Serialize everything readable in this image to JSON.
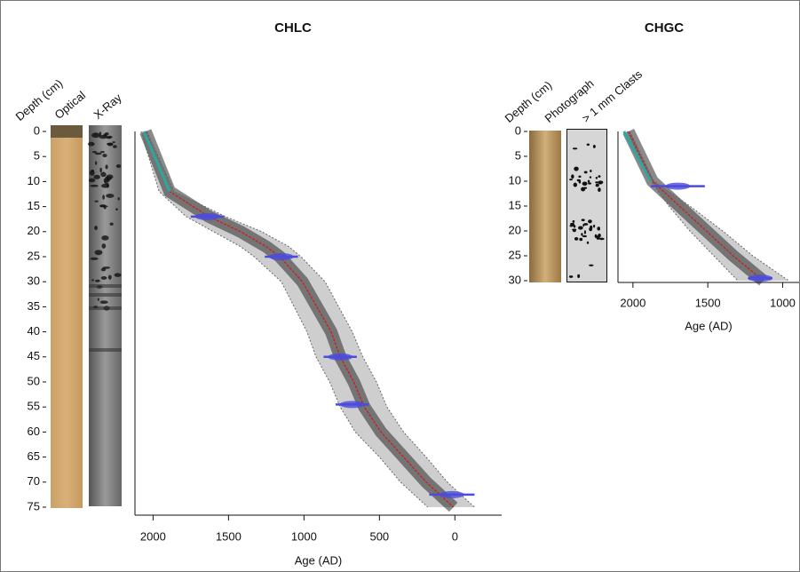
{
  "chart_data": [
    {
      "type": "line",
      "title": "CHLC",
      "depth_label": "Depth (cm)",
      "core_labels": [
        "Optical",
        "X-Ray"
      ],
      "x_label": "Age (AD)",
      "xlim": [
        2120,
        -310
      ],
      "xticks": [
        2000,
        1500,
        1000,
        500,
        0
      ],
      "ylim": [
        0,
        76.5
      ],
      "yticks": [
        0,
        5,
        10,
        15,
        20,
        25,
        30,
        35,
        40,
        45,
        50,
        55,
        60,
        65,
        70,
        75
      ],
      "median": {
        "color": "#cc1f1f",
        "age": [
          2050,
          1890,
          1630,
          1420,
          1250,
          1160,
          1010,
          820,
          760,
          670,
          600,
          490,
          340,
          190,
          10
        ],
        "depth": [
          0,
          12,
          17,
          20,
          23,
          25,
          30,
          40,
          45,
          50,
          55,
          60,
          65,
          70,
          75
        ]
      },
      "upper": {
        "color": "#666666",
        "age": [
          2080,
          1960,
          1780,
          1600,
          1420,
          1330,
          1150,
          980,
          920,
          830,
          760,
          660,
          500,
          360,
          180
        ],
        "depth": [
          0,
          12,
          17,
          20,
          23,
          25,
          30,
          40,
          45,
          50,
          55,
          60,
          65,
          70,
          75
        ]
      },
      "lower": {
        "color": "#666666",
        "age": [
          2040,
          1860,
          1520,
          1280,
          1100,
          1020,
          860,
          680,
          610,
          520,
          450,
          340,
          190,
          50,
          -130
        ],
        "depth": [
          0,
          12,
          17,
          20,
          23,
          25,
          30,
          40,
          45,
          50,
          55,
          60,
          65,
          70,
          75
        ]
      },
      "surface": {
        "color": "#2aa8a0",
        "age": [
          2060,
          1890
        ],
        "depth": [
          0,
          12
        ]
      },
      "dates": {
        "color": "#4b4bdc",
        "age": [
          1640,
          1150,
          760,
          680,
          20
        ],
        "depth": [
          17,
          25,
          45,
          54.5,
          72.5
        ],
        "error": [
          110,
          110,
          110,
          110,
          150
        ]
      }
    },
    {
      "type": "line",
      "title": "CHGC",
      "depth_label": "Depth (cm)",
      "core_labels": [
        "Photograph",
        "> 1 mm Clasts"
      ],
      "x_label": "Age (AD)",
      "xlim": [
        2100,
        890
      ],
      "xticks": [
        2000,
        1500,
        1000
      ],
      "ylim": [
        0,
        30.3
      ],
      "yticks": [
        0,
        5,
        10,
        15,
        20,
        25,
        30
      ],
      "median": {
        "color": "#cc1f1f",
        "age": [
          2030,
          1870,
          1690,
          1510,
          1330,
          1130
        ],
        "depth": [
          0,
          10,
          15,
          20,
          25,
          30
        ]
      },
      "upper": {
        "color": "#666666",
        "age": [
          2040,
          1880,
          1760,
          1620,
          1460,
          1300
        ],
        "depth": [
          0,
          10,
          15,
          20,
          25,
          30
        ]
      },
      "lower": {
        "color": "#666666",
        "age": [
          2020,
          1860,
          1620,
          1400,
          1200,
          960
        ],
        "depth": [
          0,
          10,
          15,
          20,
          25,
          30
        ]
      },
      "surface": {
        "color": "#2aa8a0",
        "age": [
          2060,
          1880
        ],
        "depth": [
          0,
          10
        ]
      },
      "dates": {
        "color": "#4b4bdc",
        "age": [
          1700,
          1150
        ],
        "depth": [
          11,
          29.5
        ],
        "error": [
          180,
          80
        ]
      }
    }
  ]
}
